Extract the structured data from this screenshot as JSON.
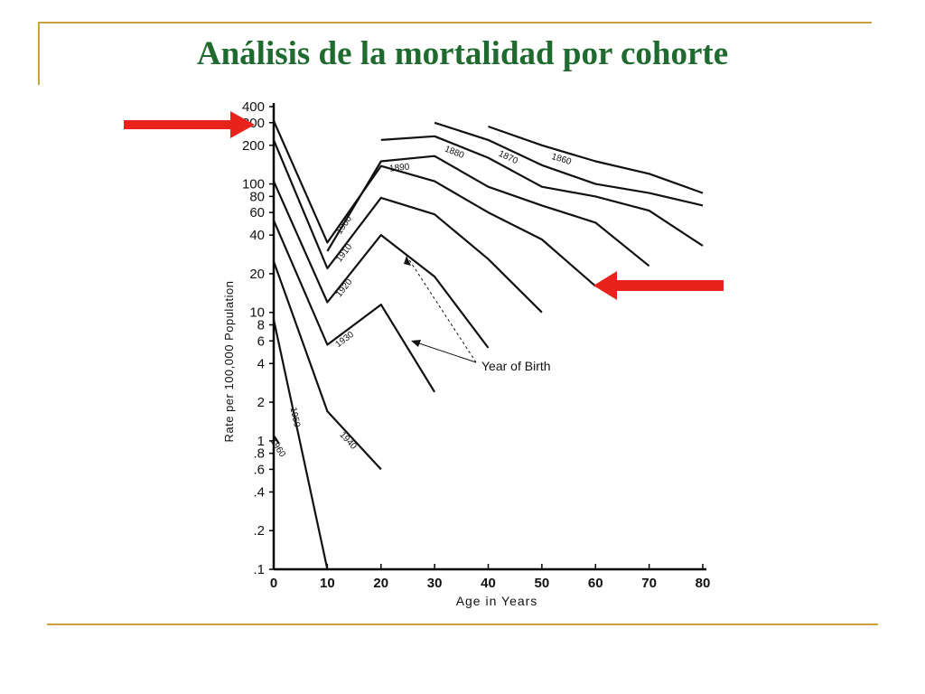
{
  "slide": {
    "title": "Análisis de la mortalidad por cohorte",
    "accent_color": "#1f6b2f",
    "rule_color": "#c9a33a",
    "arrow_color": "#e8231c"
  },
  "annotation": {
    "label": "Year of Birth",
    "points_to": [
      "1920",
      "1930"
    ]
  },
  "arrows": [
    {
      "name": "arrow-top-left",
      "direction": "right",
      "points_to": "400 tick (1950 cohort start)"
    },
    {
      "name": "arrow-mid-right",
      "direction": "left",
      "points_to": "1910 cohort end"
    }
  ],
  "chart_data": {
    "type": "line",
    "title": "",
    "xlabel": "Age in Years",
    "ylabel": "Rate per 100,000 Population",
    "yscale": "log",
    "xlim": [
      0,
      80
    ],
    "ylim": [
      0.1,
      400
    ],
    "grid": false,
    "xticks": [
      "0",
      "10",
      "20",
      "30",
      "40",
      "50",
      "60",
      "70",
      "80"
    ],
    "yticks": [
      {
        "value": 400,
        "label": "400"
      },
      {
        "value": 300,
        "label": "300"
      },
      {
        "value": 200,
        "label": "200"
      },
      {
        "value": 100,
        "label": "100"
      },
      {
        "value": 80,
        "label": "80"
      },
      {
        "value": 60,
        "label": "60"
      },
      {
        "value": 40,
        "label": "40"
      },
      {
        "value": 20,
        "label": "20"
      },
      {
        "value": 10,
        "label": "10"
      },
      {
        "value": 8,
        "label": "8"
      },
      {
        "value": 6,
        "label": "6"
      },
      {
        "value": 4,
        "label": "4"
      },
      {
        "value": 2,
        "label": "2"
      },
      {
        "value": 1,
        "label": "1"
      },
      {
        "value": 0.8,
        "label": ".8"
      },
      {
        "value": 0.6,
        "label": ".6"
      },
      {
        "value": 0.4,
        "label": ".4"
      },
      {
        "value": 0.2,
        "label": ".2"
      },
      {
        "value": 0.1,
        "label": ".1"
      }
    ],
    "series": [
      {
        "name": "1860",
        "x": [
          40,
          50,
          60,
          70,
          80
        ],
        "y": [
          280,
          200,
          150,
          120,
          85
        ]
      },
      {
        "name": "1870",
        "x": [
          30,
          40,
          50,
          60,
          70,
          80
        ],
        "y": [
          300,
          220,
          140,
          100,
          85,
          68
        ]
      },
      {
        "name": "1880",
        "x": [
          20,
          30,
          40,
          50,
          60,
          70,
          80
        ],
        "y": [
          220,
          235,
          160,
          95,
          80,
          62,
          33
        ]
      },
      {
        "name": "1890",
        "x": [
          10,
          20,
          30,
          40,
          50,
          60,
          70
        ],
        "y": [
          30,
          150,
          165,
          95,
          68,
          50,
          23
        ]
      },
      {
        "name": "1900",
        "x": [
          0,
          10,
          20,
          30,
          40,
          50,
          60
        ],
        "y": [
          310,
          35,
          138,
          105,
          60,
          37,
          16
        ]
      },
      {
        "name": "1910",
        "x": [
          0,
          10,
          20,
          30,
          40,
          50
        ],
        "y": [
          220,
          22,
          78,
          58,
          26,
          10
        ]
      },
      {
        "name": "1920",
        "x": [
          0,
          10,
          20,
          30,
          40
        ],
        "y": [
          105,
          12,
          40,
          19,
          5.3
        ]
      },
      {
        "name": "1930",
        "x": [
          0,
          10,
          20,
          30
        ],
        "y": [
          52,
          5.6,
          11.5,
          2.4
        ]
      },
      {
        "name": "1940",
        "x": [
          0,
          10,
          20
        ],
        "y": [
          25,
          1.7,
          0.6
        ]
      },
      {
        "name": "1950",
        "x": [
          0,
          10
        ],
        "y": [
          8.8,
          0.1
        ]
      },
      {
        "name": "1960",
        "x": [
          0,
          1
        ],
        "y": [
          1.1,
          0.95
        ]
      }
    ]
  }
}
